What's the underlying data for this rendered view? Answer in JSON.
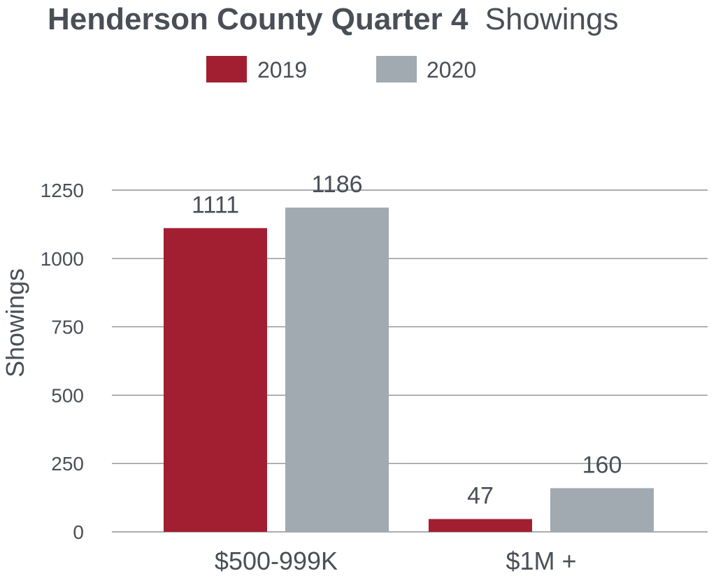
{
  "chart_data": {
    "type": "bar",
    "title": {
      "bold": "Henderson County Quarter 4",
      "regular": "Showings"
    },
    "ylabel": "Showings",
    "xlabel": "",
    "categories": [
      "$500-999K",
      "$1M +"
    ],
    "series": [
      {
        "name": "2019",
        "color": "#a21f32",
        "values": [
          1111,
          47
        ]
      },
      {
        "name": "2020",
        "color": "#a1aab1",
        "values": [
          1186,
          160
        ]
      }
    ],
    "yticks": [
      0,
      250,
      500,
      750,
      1000,
      1250
    ],
    "ylim": [
      0,
      1250
    ],
    "grid": true,
    "legend_position": "top-center",
    "data_labels": true
  }
}
